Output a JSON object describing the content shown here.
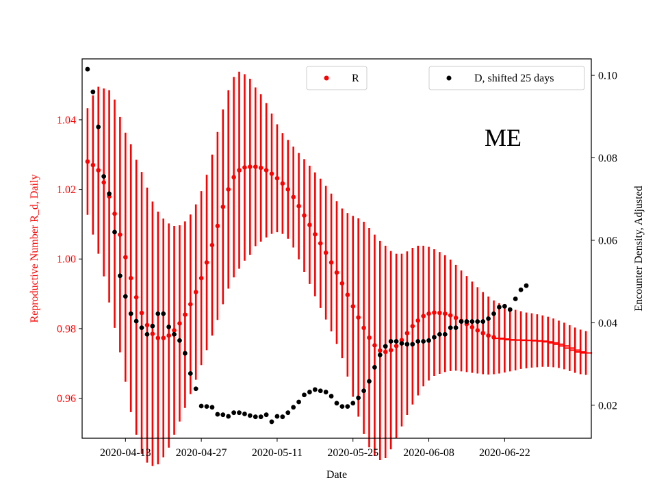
{
  "chart_data": {
    "type": "scatter",
    "annotation": "ME",
    "xlabel": "Date",
    "ylabel_left": "Reproductive Number R_d, Daily",
    "ylabel_right": "Encounter Density, Adjusted",
    "x_ticks": [
      "2020-04-13",
      "2020-04-27",
      "2020-05-11",
      "2020-05-25",
      "2020-06-08",
      "2020-06-22"
    ],
    "y_left_ticks": [
      "0.96",
      "0.98",
      "1.00",
      "1.02",
      "1.04"
    ],
    "y_right_ticks": [
      "0.02",
      "0.04",
      "0.06",
      "0.08",
      "0.10"
    ],
    "y_left_lim": [
      0.9485,
      1.0575
    ],
    "y_right_lim": [
      0.012,
      0.104
    ],
    "x_start": "2020-04-05",
    "grid": false,
    "colors": {
      "R": "#ff0000",
      "D": "#000000",
      "left_axis": "#ff0000",
      "right_axis": "#000000"
    },
    "legend": {
      "R": {
        "label": "R",
        "position": "top-center"
      },
      "D": {
        "label": "D, shifted 25 days",
        "position": "top-right"
      }
    },
    "series": [
      {
        "name": "R",
        "axis": "left",
        "y": [
          1.028,
          1.027,
          1.0255,
          1.022,
          1.018,
          1.013,
          1.007,
          1.0005,
          0.9945,
          0.989,
          0.9845,
          0.981,
          0.9785,
          0.9773,
          0.9773,
          0.978,
          0.9795,
          0.9815,
          0.984,
          0.987,
          0.9905,
          0.9945,
          0.999,
          1.004,
          1.0095,
          1.015,
          1.02,
          1.0235,
          1.0255,
          1.0263,
          1.0265,
          1.0265,
          1.0262,
          1.0255,
          1.0245,
          1.0232,
          1.0217,
          1.02,
          1.0178,
          1.0152,
          1.0125,
          1.0098,
          1.0071,
          1.0045,
          1.0018,
          0.999,
          0.9961,
          0.993,
          0.9897,
          0.9864,
          0.9832,
          0.9802,
          0.9774,
          0.9752,
          0.9737,
          0.9733,
          0.9738,
          0.975,
          0.9767,
          0.9787,
          0.9807,
          0.9823,
          0.9836,
          0.9843,
          0.9846,
          0.9845,
          0.9843,
          0.9838,
          0.9831,
          0.9822,
          0.9813,
          0.9804,
          0.9795,
          0.9787,
          0.978,
          0.9775,
          0.9772,
          0.977,
          0.9768,
          0.9767,
          0.9767,
          0.9766,
          0.9766,
          0.9765,
          0.9764,
          0.9762,
          0.9759,
          0.9755,
          0.975,
          0.9744,
          0.9738,
          0.9733,
          0.973
        ],
        "err": [
          0.0153,
          0.02,
          0.024,
          0.027,
          0.0305,
          0.0328,
          0.0338,
          0.0358,
          0.0385,
          0.0395,
          0.0405,
          0.0395,
          0.038,
          0.0363,
          0.0343,
          0.0322,
          0.03,
          0.0282,
          0.0268,
          0.0258,
          0.0252,
          0.025,
          0.0252,
          0.026,
          0.027,
          0.028,
          0.0285,
          0.0288,
          0.0283,
          0.0268,
          0.0253,
          0.0228,
          0.0212,
          0.0193,
          0.0173,
          0.0155,
          0.0145,
          0.0142,
          0.0145,
          0.0153,
          0.0162,
          0.017,
          0.0178,
          0.0186,
          0.0192,
          0.0198,
          0.0205,
          0.0215,
          0.0235,
          0.026,
          0.0285,
          0.0305,
          0.0315,
          0.0318,
          0.0315,
          0.0305,
          0.0285,
          0.0265,
          0.0248,
          0.0235,
          0.0225,
          0.0215,
          0.0202,
          0.0192,
          0.0182,
          0.0175,
          0.0168,
          0.016,
          0.0152,
          0.0145,
          0.0138,
          0.0131,
          0.0124,
          0.0118,
          0.0112,
          0.0106,
          0.0101,
          0.0096,
          0.0091,
          0.0087,
          0.0083,
          0.008,
          0.0078,
          0.0076,
          0.0074,
          0.0072,
          0.007,
          0.0068,
          0.0067,
          0.0066,
          0.0065,
          0.0064,
          0.0063
        ],
        "truncate_after_x": 75
      },
      {
        "name": "D, shifted 25 days",
        "axis": "right",
        "y": [
          0.1015,
          0.096,
          0.0875,
          0.0755,
          0.0713,
          0.062,
          0.0514,
          0.0464,
          0.0422,
          0.0404,
          0.0388,
          0.0372,
          0.0392,
          0.0422,
          0.0422,
          0.039,
          0.0372,
          0.0357,
          0.0326,
          0.0277,
          0.024,
          0.0198,
          0.0197,
          0.0195,
          0.0178,
          0.0177,
          0.0173,
          0.0182,
          0.0182,
          0.0179,
          0.0175,
          0.0172,
          0.0172,
          0.0177,
          0.016,
          0.0173,
          0.0172,
          0.0182,
          0.0195,
          0.0208,
          0.0225,
          0.0232,
          0.0238,
          0.0235,
          0.0232,
          0.0222,
          0.0205,
          0.0197,
          0.0197,
          0.0205,
          0.0218,
          0.0235,
          0.0258,
          0.0292,
          0.0322,
          0.0343,
          0.0355,
          0.0355,
          0.035,
          0.0348,
          0.0348,
          0.0355,
          0.0355,
          0.0357,
          0.0365,
          0.0372,
          0.0372,
          0.0388,
          0.0388,
          0.0403,
          0.0403,
          0.0403,
          0.0403,
          0.0403,
          0.041,
          0.0422,
          0.0438,
          0.044,
          0.0432,
          0.0458,
          0.048,
          0.049
        ]
      }
    ]
  }
}
